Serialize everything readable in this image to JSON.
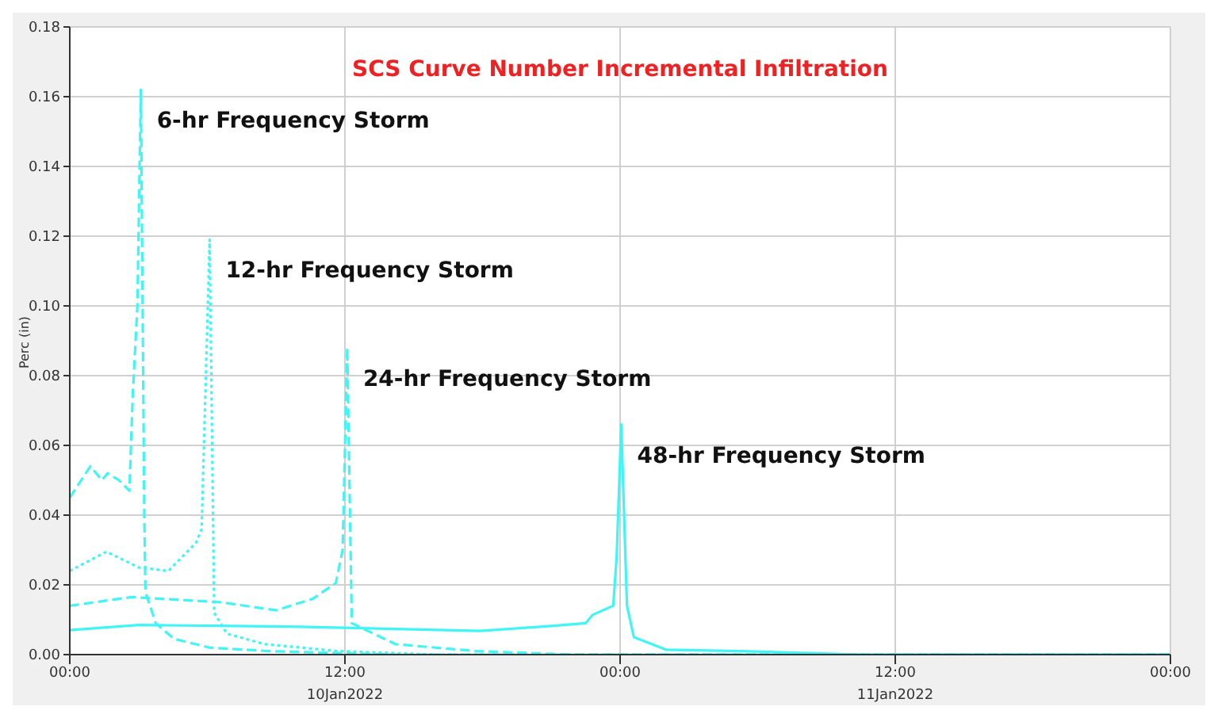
{
  "chart_data": {
    "type": "line",
    "title": "SCS Curve Number Incremental Infiltration",
    "ylabel": "Perc (in)",
    "xlim": [
      "2022-01-10T00:00",
      "2022-01-12T00:00"
    ],
    "xticks": [
      {
        "value": "2022-01-10T00:00",
        "label": "00:00"
      },
      {
        "value": "2022-01-10T12:00",
        "label": "12:00"
      },
      {
        "value": "2022-01-11T00:00",
        "label": "00:00"
      },
      {
        "value": "2022-01-11T12:00",
        "label": "12:00"
      },
      {
        "value": "2022-01-12T00:00",
        "label": "00:00"
      }
    ],
    "annotations": [
      "10Jan2022",
      "11Jan2022"
    ],
    "ylim": [
      0,
      0.18
    ],
    "yticks": [
      {
        "value": 0,
        "label": "0.00"
      },
      {
        "value": 0.02,
        "label": "0.02"
      },
      {
        "value": 0.04,
        "label": "0.04"
      },
      {
        "value": 0.06,
        "label": "0.06"
      },
      {
        "value": 0.08,
        "label": "0.08"
      },
      {
        "value": 0.1,
        "label": "0.10"
      },
      {
        "value": 0.12,
        "label": "0.12"
      },
      {
        "value": 0.14,
        "label": "0.14"
      },
      {
        "value": 0.16,
        "label": "0.16"
      },
      {
        "value": 0.18,
        "label": "0.18"
      }
    ],
    "grid": true,
    "marker": "none",
    "series": [
      {
        "name": "6-hr Frequency Storm",
        "color": "#3ff5f5",
        "line_style": "dashed",
        "x": [
          "2022-01-10T00:00",
          "2022-01-10T00:54",
          "2022-01-10T01:24",
          "2022-01-10T01:39",
          "2022-01-10T02:09",
          "2022-01-10T02:36",
          "2022-01-10T02:45",
          "2022-01-10T02:57",
          "2022-01-10T03:06",
          "2022-01-10T03:15",
          "2022-01-10T03:18",
          "2022-01-10T03:45",
          "2022-01-10T04:33",
          "2022-01-10T06:06",
          "2022-01-10T08:42",
          "2022-01-10T14:12",
          "2022-01-12T00:00"
        ],
        "values": [
          0.045,
          0.054,
          0.05,
          0.052,
          0.05,
          0.047,
          0.075,
          0.1,
          0.162,
          0.04,
          0.018,
          0.009,
          0.0045,
          0.002,
          0.001,
          0,
          0
        ]
      },
      {
        "name": "12-hr Frequency Storm",
        "color": "#3ff5f5",
        "line_style": "dotted",
        "x": [
          "2022-01-10T00:00",
          "2022-01-10T01:36",
          "2022-01-10T03:00",
          "2022-01-10T04:18",
          "2022-01-10T05:30",
          "2022-01-10T05:45",
          "2022-01-10T06:06",
          "2022-01-10T06:18",
          "2022-01-10T06:51",
          "2022-01-10T08:30",
          "2022-01-10T11:42",
          "2022-01-10T16:00",
          "2022-01-12T00:00"
        ],
        "values": [
          0.024,
          0.0295,
          0.025,
          0.024,
          0.032,
          0.036,
          0.119,
          0.012,
          0.006,
          0.003,
          0.001,
          0,
          0
        ]
      },
      {
        "name": "24-hr Frequency Storm",
        "color": "#3ff5f5",
        "line_style": "dashed",
        "x": [
          "2022-01-10T00:00",
          "2022-01-10T02:42",
          "2022-01-10T06:36",
          "2022-01-10T09:00",
          "2022-01-10T10:36",
          "2022-01-10T11:36",
          "2022-01-10T11:54",
          "2022-01-10T12:06",
          "2022-01-10T12:18",
          "2022-01-10T14:12",
          "2022-01-10T17:42",
          "2022-01-10T22:00",
          "2022-01-12T00:00"
        ],
        "values": [
          0.014,
          0.0165,
          0.015,
          0.0127,
          0.016,
          0.0205,
          0.03,
          0.088,
          0.009,
          0.003,
          0.001,
          0,
          0
        ]
      },
      {
        "name": "48-hr Frequency Storm",
        "color": "#3ff5f5",
        "line_style": "solid",
        "x": [
          "2022-01-10T00:00",
          "2022-01-10T03:00",
          "2022-01-10T10:00",
          "2022-01-10T17:54",
          "2022-01-10T21:00",
          "2022-01-10T22:30",
          "2022-01-10T22:48",
          "2022-01-10T23:42",
          "2022-01-10T23:51",
          "2022-01-11T00:03",
          "2022-01-11T00:18",
          "2022-01-11T00:36",
          "2022-01-11T02:00",
          "2022-01-11T05:18",
          "2022-01-11T10:30",
          "2022-01-12T00:00"
        ],
        "values": [
          0.007,
          0.0085,
          0.008,
          0.0068,
          0.0082,
          0.009,
          0.0114,
          0.014,
          0.028,
          0.066,
          0.014,
          0.005,
          0.0014,
          0.001,
          0,
          0
        ]
      }
    ]
  }
}
